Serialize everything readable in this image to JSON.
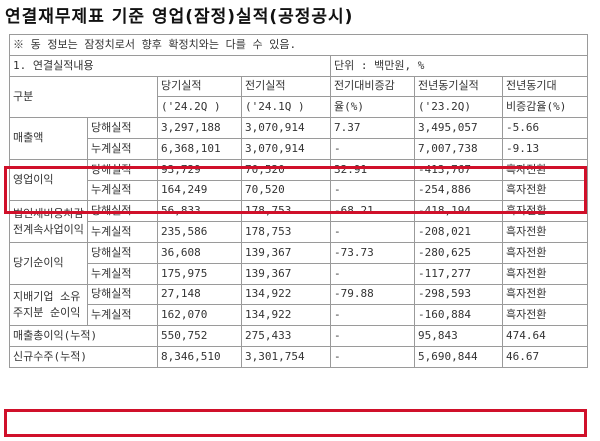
{
  "title": "연결재무제표 기준 영업(잠정)실적(공정공시)",
  "notice": "※ 동 정보는 잠정치로서 향후 확정치와는 다를 수 있음.",
  "section": "1. 연결실적내용",
  "unit": "단위 : 백만원, %",
  "header": {
    "category": "구분",
    "current": "당기실적",
    "current_period": "('24.2Q )",
    "previous": "전기실적",
    "previous_period": "('24.1Q )",
    "qoq_top": "전기대비증감",
    "qoq_bottom": "율(%)",
    "yoy_prev": "전년동기실적",
    "yoy_prev_period": "('23.2Q)",
    "yoy_top": "전년동기대",
    "yoy_bottom": "비증감율(%)"
  },
  "sub_labels": {
    "current": "당해실적",
    "cumulative": "누계실적"
  },
  "rows": {
    "sales": {
      "label": "매출액",
      "current": [
        "3,297,188",
        "3,070,914",
        "7.37",
        "3,495,057",
        "-5.66"
      ],
      "cumulative": [
        "6,368,101",
        "3,070,914",
        "-",
        "7,007,738",
        "-9.13"
      ]
    },
    "operating": {
      "label": "영업이익",
      "current": [
        "93,729",
        "70,520",
        "32.91",
        "-413,767",
        "흑자전환"
      ],
      "cumulative": [
        "164,249",
        "70,520",
        "-",
        "-254,886",
        "흑자전환"
      ]
    },
    "pretax": {
      "label": "법인세비용차감전계속사업이익",
      "current": [
        "56,833",
        "178,753",
        "-68.21",
        "-418,194",
        "흑자전환"
      ],
      "cumulative": [
        "235,586",
        "178,753",
        "-",
        "-208,021",
        "흑자전환"
      ]
    },
    "net": {
      "label": "당기순이익",
      "current": [
        "36,608",
        "139,367",
        "-73.73",
        "-280,625",
        "흑자전환"
      ],
      "cumulative": [
        "175,975",
        "139,367",
        "-",
        "-117,277",
        "흑자전환"
      ]
    },
    "controlling": {
      "label": "지배기업 소유주지분 순이익",
      "current": [
        "27,148",
        "134,922",
        "-79.88",
        "-298,593",
        "흑자전환"
      ],
      "cumulative": [
        "162,070",
        "134,922",
        "-",
        "-160,884",
        "흑자전환"
      ]
    },
    "gross": {
      "label": "매출총이익(누적)",
      "values": [
        "550,752",
        "275,433",
        "-",
        "95,843",
        "474.64"
      ]
    },
    "orders": {
      "label": "신규수주(누적)",
      "values": [
        "8,346,510",
        "3,301,754",
        "-",
        "5,690,844",
        "46.67"
      ]
    }
  },
  "highlight_color": "#d0102a"
}
